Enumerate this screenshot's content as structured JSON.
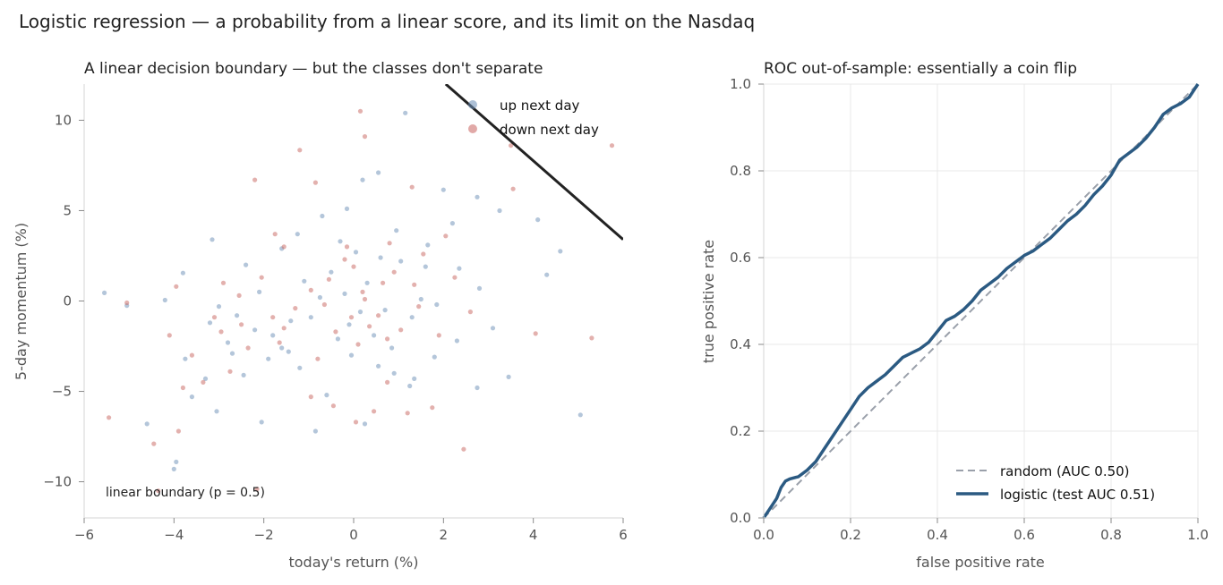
{
  "figure": {
    "suptitle": "Logistic regression — a probability from a linear score, and its limit on the Nasdaq"
  },
  "colors": {
    "up": "#6a8db5",
    "down": "#c8635e",
    "roc": "#2b5a82",
    "random": "#9aa0aa",
    "boundary": "#222222"
  },
  "chart_data": [
    {
      "type": "scatter",
      "title": "A linear decision boundary — but the classes don't separate",
      "xlabel": "today's return (%)",
      "ylabel": "5-day momentum (%)",
      "xlim": [
        -6,
        6
      ],
      "ylim": [
        -12,
        12
      ],
      "xticks": [
        -6,
        -4,
        -2,
        0,
        2,
        4,
        6
      ],
      "yticks": [
        -10,
        -5,
        0,
        5,
        10
      ],
      "tick_labels_x": [
        "−6",
        "−4",
        "−2",
        "0",
        "2",
        "4",
        "6"
      ],
      "tick_labels_y": [
        "−10",
        "−5",
        "0",
        "5",
        "10"
      ],
      "grid": false,
      "legend_position": "upper-right",
      "series": [
        {
          "name": "up next day",
          "points": [
            [
              -5.55,
              0.45
            ],
            [
              -5.05,
              -0.25
            ],
            [
              -4.6,
              -6.8
            ],
            [
              -4.2,
              0.05
            ],
            [
              -4.0,
              -9.3
            ],
            [
              -3.95,
              -8.9
            ],
            [
              -3.8,
              1.55
            ],
            [
              -3.75,
              -3.2
            ],
            [
              -3.6,
              -5.3
            ],
            [
              -3.3,
              -4.3
            ],
            [
              -3.2,
              -1.2
            ],
            [
              -3.15,
              3.4
            ],
            [
              -3.05,
              -6.1
            ],
            [
              -2.8,
              -2.3
            ],
            [
              -2.6,
              -0.8
            ],
            [
              -2.45,
              -4.1
            ],
            [
              -2.2,
              -1.6
            ],
            [
              -2.05,
              -6.7
            ],
            [
              -1.9,
              -3.2
            ],
            [
              -1.6,
              -2.6
            ],
            [
              -1.4,
              -1.1
            ],
            [
              -1.2,
              -3.7
            ],
            [
              -0.85,
              -7.2
            ],
            [
              -0.6,
              -5.2
            ],
            [
              0.25,
              -6.8
            ],
            [
              0.55,
              -3.6
            ],
            [
              0.9,
              -4.0
            ],
            [
              1.25,
              -4.7
            ],
            [
              1.35,
              -4.3
            ],
            [
              1.8,
              -3.1
            ],
            [
              2.3,
              -2.2
            ],
            [
              2.75,
              -4.8
            ],
            [
              3.45,
              -4.2
            ],
            [
              4.1,
              4.5
            ],
            [
              4.3,
              1.45
            ],
            [
              4.6,
              2.75
            ],
            [
              5.05,
              -6.3
            ],
            [
              2.75,
              5.75
            ],
            [
              3.25,
              5.0
            ],
            [
              2.0,
              6.15
            ],
            [
              1.15,
              10.4
            ],
            [
              0.55,
              7.1
            ],
            [
              0.2,
              6.7
            ],
            [
              -0.15,
              5.1
            ],
            [
              -0.7,
              4.7
            ],
            [
              -1.25,
              3.7
            ],
            [
              -1.6,
              2.9
            ],
            [
              -2.1,
              0.5
            ],
            [
              -0.5,
              1.6
            ],
            [
              -0.2,
              0.4
            ],
            [
              0.3,
              1.0
            ],
            [
              0.7,
              -0.5
            ],
            [
              1.05,
              2.2
            ],
            [
              1.5,
              0.1
            ],
            [
              -0.95,
              -0.9
            ],
            [
              -0.35,
              -2.1
            ],
            [
              0.05,
              2.7
            ],
            [
              0.95,
              3.9
            ],
            [
              1.65,
              3.1
            ],
            [
              2.35,
              1.8
            ],
            [
              2.8,
              0.7
            ],
            [
              3.1,
              -1.5
            ],
            [
              -1.8,
              -1.9
            ],
            [
              -2.4,
              2.0
            ],
            [
              -3.0,
              -0.3
            ],
            [
              -0.1,
              -1.3
            ],
            [
              0.45,
              -1.9
            ],
            [
              1.3,
              -0.9
            ],
            [
              -1.1,
              1.1
            ],
            [
              -0.75,
              0.2
            ],
            [
              0.15,
              -0.6
            ],
            [
              0.6,
              2.4
            ],
            [
              1.85,
              -0.2
            ],
            [
              2.2,
              4.3
            ],
            [
              -1.45,
              -2.8
            ],
            [
              0.85,
              -2.6
            ],
            [
              -0.3,
              3.3
            ],
            [
              -0.05,
              -3.0
            ],
            [
              1.6,
              1.9
            ],
            [
              -2.7,
              -2.9
            ]
          ]
        },
        {
          "name": "down next day",
          "points": [
            [
              -5.45,
              -6.45
            ],
            [
              -5.05,
              -0.1
            ],
            [
              -4.45,
              -7.9
            ],
            [
              -4.35,
              -10.5
            ],
            [
              -4.1,
              -1.9
            ],
            [
              -3.95,
              0.8
            ],
            [
              -3.9,
              -7.2
            ],
            [
              -3.8,
              -4.8
            ],
            [
              -3.6,
              -3.0
            ],
            [
              -3.35,
              -4.5
            ],
            [
              -2.95,
              -1.7
            ],
            [
              -2.75,
              -3.9
            ],
            [
              -2.5,
              -1.3
            ],
            [
              -2.2,
              6.7
            ],
            [
              -2.15,
              -10.4
            ],
            [
              -1.8,
              -0.9
            ],
            [
              -1.55,
              3.0
            ],
            [
              -1.2,
              8.35
            ],
            [
              -0.95,
              -5.3
            ],
            [
              -0.8,
              -3.2
            ],
            [
              -0.45,
              -5.8
            ],
            [
              0.05,
              -6.7
            ],
            [
              0.25,
              9.1
            ],
            [
              0.45,
              -6.1
            ],
            [
              0.75,
              -4.5
            ],
            [
              1.2,
              -6.2
            ],
            [
              1.3,
              6.3
            ],
            [
              1.75,
              -5.9
            ],
            [
              2.45,
              -8.2
            ],
            [
              3.5,
              8.6
            ],
            [
              3.55,
              6.2
            ],
            [
              4.05,
              -1.8
            ],
            [
              5.3,
              -2.05
            ],
            [
              5.75,
              8.6
            ],
            [
              0.15,
              10.5
            ],
            [
              -0.85,
              6.55
            ],
            [
              -1.75,
              3.7
            ],
            [
              -2.05,
              1.3
            ],
            [
              -0.55,
              1.2
            ],
            [
              -0.2,
              2.3
            ],
            [
              0.2,
              0.5
            ],
            [
              0.55,
              -0.8
            ],
            [
              0.9,
              1.6
            ],
            [
              1.45,
              -0.3
            ],
            [
              -1.3,
              -0.4
            ],
            [
              -0.4,
              -1.7
            ],
            [
              0.0,
              1.9
            ],
            [
              0.8,
              3.2
            ],
            [
              1.55,
              2.6
            ],
            [
              2.25,
              1.3
            ],
            [
              2.6,
              -0.6
            ],
            [
              -1.65,
              -2.3
            ],
            [
              -2.55,
              0.3
            ],
            [
              -0.05,
              -0.9
            ],
            [
              0.35,
              -1.4
            ],
            [
              1.05,
              -1.6
            ],
            [
              -0.95,
              0.6
            ],
            [
              -0.65,
              -0.2
            ],
            [
              0.25,
              0.1
            ],
            [
              0.65,
              1.0
            ],
            [
              1.9,
              -1.9
            ],
            [
              2.05,
              3.6
            ],
            [
              -1.55,
              -1.5
            ],
            [
              0.75,
              -2.1
            ],
            [
              -0.15,
              3.0
            ],
            [
              0.1,
              -2.4
            ],
            [
              1.35,
              0.9
            ],
            [
              -2.35,
              -2.6
            ],
            [
              -3.1,
              -0.9
            ],
            [
              -2.9,
              1.0
            ]
          ]
        }
      ],
      "boundary": {
        "label": "linear boundary (p = 0.5)",
        "line": [
          [
            2.05,
            12.0
          ],
          [
            6.0,
            3.4
          ]
        ]
      }
    },
    {
      "type": "line",
      "title": "ROC out-of-sample: essentially a coin flip",
      "xlabel": "false positive rate",
      "ylabel": "true positive rate",
      "xlim": [
        0,
        1
      ],
      "ylim": [
        0,
        1
      ],
      "xticks": [
        0,
        0.2,
        0.4,
        0.6,
        0.8,
        1.0
      ],
      "yticks": [
        0,
        0.2,
        0.4,
        0.6,
        0.8,
        1.0
      ],
      "tick_labels_x": [
        "0.0",
        "0.2",
        "0.4",
        "0.6",
        "0.8",
        "1.0"
      ],
      "tick_labels_y": [
        "0.0",
        "0.2",
        "0.4",
        "0.6",
        "0.8",
        "1.0"
      ],
      "grid": true,
      "legend_position": "lower-right",
      "series": [
        {
          "name": "random (AUC 0.50)",
          "style": "dashed",
          "x": [
            0,
            1
          ],
          "y": [
            0,
            1
          ]
        },
        {
          "name": "logistic (test AUC 0.51)",
          "style": "solid",
          "x": [
            0.0,
            0.01,
            0.02,
            0.03,
            0.04,
            0.05,
            0.06,
            0.08,
            0.1,
            0.12,
            0.14,
            0.16,
            0.18,
            0.2,
            0.22,
            0.24,
            0.26,
            0.28,
            0.3,
            0.32,
            0.34,
            0.36,
            0.38,
            0.4,
            0.42,
            0.44,
            0.46,
            0.48,
            0.5,
            0.52,
            0.54,
            0.56,
            0.58,
            0.6,
            0.62,
            0.64,
            0.66,
            0.68,
            0.7,
            0.72,
            0.74,
            0.76,
            0.78,
            0.8,
            0.82,
            0.84,
            0.86,
            0.88,
            0.9,
            0.92,
            0.94,
            0.96,
            0.98,
            1.0
          ],
          "y": [
            0.0,
            0.015,
            0.03,
            0.045,
            0.07,
            0.085,
            0.09,
            0.095,
            0.11,
            0.13,
            0.16,
            0.19,
            0.22,
            0.25,
            0.28,
            0.3,
            0.315,
            0.33,
            0.35,
            0.37,
            0.38,
            0.39,
            0.405,
            0.43,
            0.455,
            0.465,
            0.48,
            0.5,
            0.525,
            0.54,
            0.555,
            0.575,
            0.59,
            0.605,
            0.615,
            0.63,
            0.645,
            0.665,
            0.685,
            0.7,
            0.72,
            0.745,
            0.765,
            0.79,
            0.825,
            0.84,
            0.855,
            0.875,
            0.9,
            0.93,
            0.945,
            0.955,
            0.97,
            1.0
          ]
        }
      ]
    }
  ]
}
